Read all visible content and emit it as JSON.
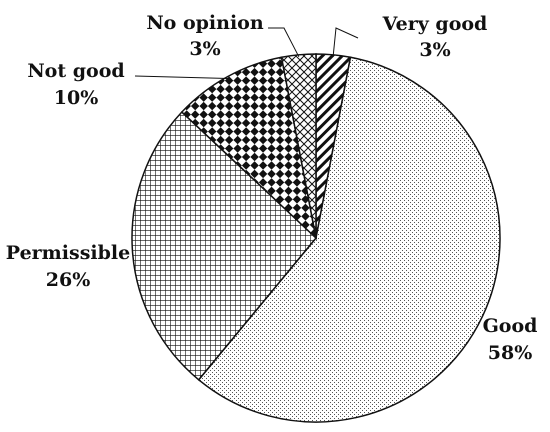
{
  "chart_data": {
    "type": "pie",
    "title": "",
    "slices": [
      {
        "label": "Very good",
        "value": 3,
        "value_label": "3%",
        "pattern": "diagonal-stripes"
      },
      {
        "label": "Good",
        "value": 58,
        "value_label": "58%",
        "pattern": "fine-dots"
      },
      {
        "label": "Permissible",
        "value": 26,
        "value_label": "26%",
        "pattern": "grid"
      },
      {
        "label": "Not good",
        "value": 10,
        "value_label": "10%",
        "pattern": "checkerboard"
      },
      {
        "label": "No opinion",
        "value": 3,
        "value_label": "3%",
        "pattern": "crosshatch"
      }
    ],
    "start_angle": "top (12 o'clock)",
    "direction": "clockwise",
    "legend": "none (labels next to slices)",
    "colors": {
      "outline": "#111111",
      "background": "#ffffff",
      "fill": "#ffffff"
    }
  }
}
